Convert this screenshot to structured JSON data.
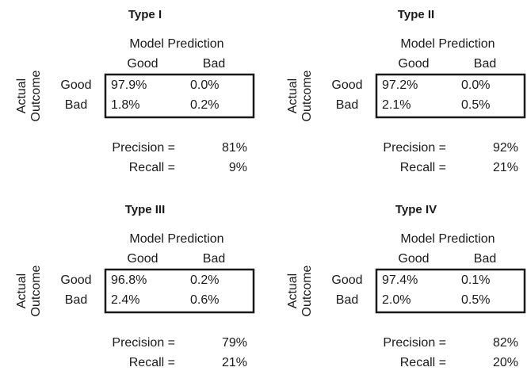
{
  "panels": [
    {
      "title": "Type I",
      "col_header": "Model Prediction",
      "columns": [
        "Good",
        "Bad"
      ],
      "row_header": [
        "Actual",
        "Outcome"
      ],
      "rows": [
        {
          "label": "Good",
          "cells": [
            "97.9%",
            "0.0%"
          ]
        },
        {
          "label": "Bad",
          "cells": [
            "1.8%",
            "0.2%"
          ]
        }
      ],
      "metrics": [
        {
          "label": "Precision =",
          "value": "81%"
        },
        {
          "label": "Recall =",
          "value": "9%"
        }
      ]
    },
    {
      "title": "Type II",
      "col_header": "Model Prediction",
      "columns": [
        "Good",
        "Bad"
      ],
      "row_header": [
        "Actual",
        "Outcome"
      ],
      "rows": [
        {
          "label": "Good",
          "cells": [
            "97.2%",
            "0.0%"
          ]
        },
        {
          "label": "Bad",
          "cells": [
            "2.1%",
            "0.5%"
          ]
        }
      ],
      "metrics": [
        {
          "label": "Precision =",
          "value": "92%"
        },
        {
          "label": "Recall =",
          "value": "21%"
        }
      ]
    },
    {
      "title": "Type III",
      "col_header": "Model Prediction",
      "columns": [
        "Good",
        "Bad"
      ],
      "row_header": [
        "Actual",
        "Outcome"
      ],
      "rows": [
        {
          "label": "Good",
          "cells": [
            "96.8%",
            "0.2%"
          ]
        },
        {
          "label": "Bad",
          "cells": [
            "2.4%",
            "0.6%"
          ]
        }
      ],
      "metrics": [
        {
          "label": "Precision =",
          "value": "79%"
        },
        {
          "label": "Recall =",
          "value": "21%"
        }
      ]
    },
    {
      "title": "Type IV",
      "col_header": "Model Prediction",
      "columns": [
        "Good",
        "Bad"
      ],
      "row_header": [
        "Actual",
        "Outcome"
      ],
      "rows": [
        {
          "label": "Good",
          "cells": [
            "97.4%",
            "0.1%"
          ]
        },
        {
          "label": "Bad",
          "cells": [
            "2.0%",
            "0.5%"
          ]
        }
      ],
      "metrics": [
        {
          "label": "Precision =",
          "value": "82%"
        },
        {
          "label": "Recall =",
          "value": "20%"
        }
      ]
    }
  ]
}
